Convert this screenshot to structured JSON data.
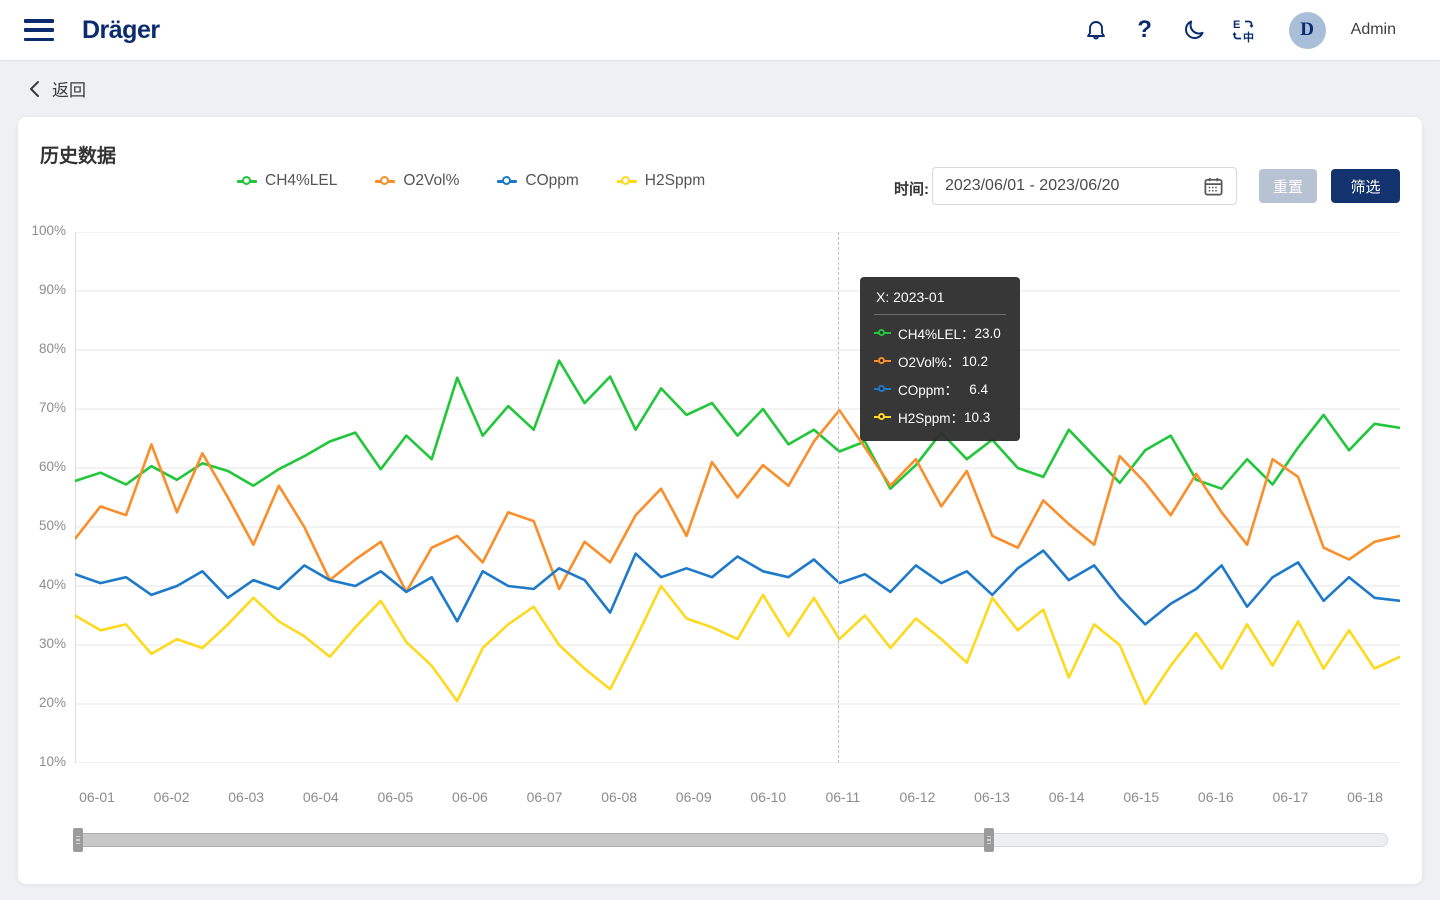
{
  "header": {
    "brand": "Dräger",
    "user": "Admin",
    "avatar_letter": "D",
    "help_glyph": "?"
  },
  "back": {
    "label": "返回"
  },
  "panel": {
    "title": "历史数据"
  },
  "filters": {
    "time_label": "时间:",
    "date_range": "2023/06/01 - 2023/06/20",
    "reset_label": "重置",
    "filter_label": "筛选"
  },
  "legend": [
    {
      "label": "CH4%LEL",
      "color": "#22c63a"
    },
    {
      "label": "O2Vol%",
      "color": "#f98e2a"
    },
    {
      "label": "COppm",
      "color": "#1e7ac8"
    },
    {
      "label": "H2Sppm",
      "color": "#ffd91e"
    }
  ],
  "tooltip": {
    "title": "X: 2023-01",
    "rows": [
      {
        "label": "CH4%LEL：",
        "value": "23.0",
        "color": "#22c63a"
      },
      {
        "label": "O2Vol%：",
        "value": "10.2",
        "color": "#f98e2a"
      },
      {
        "label": "COppm：",
        "value": "6.4",
        "color": "#1e7ac8"
      },
      {
        "label": "H2Sppm：",
        "value": "10.3",
        "color": "#ffd91e"
      }
    ]
  },
  "chart_data": {
    "type": "line",
    "title": "历史数据",
    "legend_position": "top",
    "grid": true,
    "y_axis": {
      "min": 10,
      "max": 100,
      "tick_labels": [
        "100%",
        "90%",
        "80%",
        "70%",
        "60%",
        "50%",
        "40%",
        "30%",
        "20%",
        "10%"
      ]
    },
    "x_axis": {
      "tick_labels": [
        "06-01",
        "06-02",
        "06-03",
        "06-04",
        "06-05",
        "06-06",
        "06-07",
        "06-08",
        "06-09",
        "06-10",
        "06-11",
        "06-12",
        "06-13",
        "06-14",
        "06-15",
        "06-16",
        "06-17",
        "06-18"
      ]
    },
    "crosshair": {
      "style": "dashed",
      "x_label": "2023-01"
    },
    "series": [
      {
        "name": "CH4%LEL",
        "color": "#22c63a",
        "values": [
          57.8,
          59.2,
          57.2,
          60.3,
          58.0,
          60.8,
          59.5,
          57.0,
          59.8,
          62.0,
          64.5,
          66.0,
          59.8,
          65.5,
          61.5,
          75.3,
          65.5,
          70.5,
          66.5,
          78.2,
          71.0,
          75.5,
          66.5,
          73.5,
          69.0,
          71.0,
          65.5,
          70.0,
          64.0,
          66.5,
          62.8,
          64.5,
          56.5,
          60.5,
          66.0,
          61.5,
          64.8,
          60.0,
          58.5,
          66.5,
          62.0,
          57.5,
          63.0,
          65.5,
          58.0,
          56.5,
          61.5,
          57.2,
          63.5,
          69.0,
          63.0,
          67.5,
          66.8
        ]
      },
      {
        "name": "O2Vol%",
        "color": "#f98e2a",
        "values": [
          48.0,
          53.5,
          52.0,
          64.0,
          52.5,
          62.5,
          55.0,
          47.0,
          57.0,
          50.0,
          41.0,
          44.5,
          47.5,
          39.0,
          46.5,
          48.5,
          44.0,
          52.5,
          51.0,
          39.5,
          47.5,
          44.0,
          52.0,
          56.5,
          48.5,
          61.0,
          55.0,
          60.5,
          57.0,
          64.5,
          69.8,
          63.5,
          57.0,
          61.5,
          53.5,
          59.5,
          48.5,
          46.5,
          54.5,
          50.5,
          47.0,
          62.0,
          57.5,
          52.0,
          59.0,
          52.5,
          47.0,
          61.5,
          58.5,
          46.5,
          44.5,
          47.5,
          48.5
        ]
      },
      {
        "name": "COppm",
        "color": "#1e7ac8",
        "values": [
          42.0,
          40.5,
          41.5,
          38.5,
          40.0,
          42.5,
          38.0,
          41.0,
          39.5,
          43.5,
          41.0,
          40.0,
          42.5,
          39.0,
          41.5,
          34.0,
          42.5,
          40.0,
          39.5,
          43.0,
          41.0,
          35.5,
          45.5,
          41.5,
          43.0,
          41.5,
          45.0,
          42.5,
          41.5,
          44.5,
          40.5,
          42.0,
          39.0,
          43.5,
          40.5,
          42.5,
          38.5,
          43.0,
          46.0,
          41.0,
          43.5,
          38.0,
          33.5,
          37.0,
          39.5,
          43.5,
          36.5,
          41.5,
          44.0,
          37.5,
          41.5,
          38.0,
          37.5
        ]
      },
      {
        "name": "H2Sppm",
        "color": "#ffd91e",
        "values": [
          35.0,
          32.5,
          33.5,
          28.5,
          31.0,
          29.5,
          33.5,
          38.0,
          34.0,
          31.5,
          28.0,
          33.0,
          37.5,
          30.5,
          26.5,
          20.5,
          29.5,
          33.5,
          36.5,
          30.0,
          26.0,
          22.5,
          31.0,
          40.0,
          34.5,
          33.0,
          31.0,
          38.5,
          31.5,
          38.0,
          31.0,
          35.0,
          29.5,
          34.5,
          31.0,
          27.0,
          38.0,
          32.5,
          36.0,
          24.5,
          33.5,
          30.0,
          20.0,
          26.5,
          32.0,
          26.0,
          33.5,
          26.5,
          34.0,
          26.0,
          32.5,
          26.0,
          28.0
        ]
      }
    ],
    "tooltip_values": {
      "x": "2023-01",
      "CH4%LEL": 23.0,
      "O2Vol%": 10.2,
      "COppm": 6.4,
      "H2Sppm": 10.3
    }
  }
}
